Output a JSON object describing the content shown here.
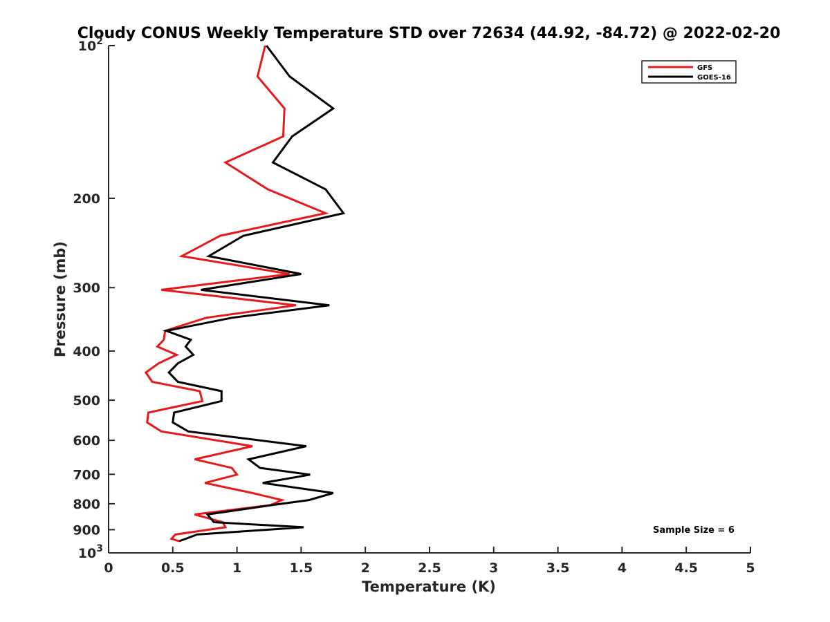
{
  "chart_data": {
    "type": "line",
    "title": "Cloudy CONUS Weekly Temperature STD over 72634 (44.92, -84.72) @ 2022-02-20",
    "xlabel": "Temperature (K)",
    "ylabel": "Pressure (mb)",
    "xlim": [
      0,
      5
    ],
    "ylim": [
      100,
      1000
    ],
    "y_scale": "log",
    "y_reversed": true,
    "x_ticks": [
      {
        "value": 0,
        "label": "0"
      },
      {
        "value": 0.5,
        "label": "0.5"
      },
      {
        "value": 1,
        "label": "1"
      },
      {
        "value": 1.5,
        "label": "1.5"
      },
      {
        "value": 2,
        "label": "2"
      },
      {
        "value": 2.5,
        "label": "2.5"
      },
      {
        "value": 3,
        "label": "3"
      },
      {
        "value": 3.5,
        "label": "3.5"
      },
      {
        "value": 4,
        "label": "4"
      },
      {
        "value": 4.5,
        "label": "4.5"
      },
      {
        "value": 5,
        "label": "5"
      }
    ],
    "y_ticks": [
      {
        "value": 100,
        "base": "10",
        "exp": "2"
      },
      {
        "value": 200,
        "label": "200"
      },
      {
        "value": 300,
        "label": "300"
      },
      {
        "value": 400,
        "label": "400"
      },
      {
        "value": 500,
        "label": "500"
      },
      {
        "value": 600,
        "label": "600"
      },
      {
        "value": 700,
        "label": "700"
      },
      {
        "value": 800,
        "label": "800"
      },
      {
        "value": 900,
        "label": "900"
      },
      {
        "value": 1000,
        "base": "10",
        "exp": "3"
      }
    ],
    "grid": false,
    "legend": {
      "position": "top-right"
    },
    "annotation": "Sample Size = 6",
    "series": [
      {
        "name": "GFS",
        "color": "#e41a1c",
        "points": [
          [
            1.22,
            100
          ],
          [
            1.16,
            115
          ],
          [
            1.37,
            133
          ],
          [
            1.36,
            151
          ],
          [
            0.91,
            170
          ],
          [
            1.24,
            192
          ],
          [
            1.69,
            214
          ],
          [
            0.87,
            237
          ],
          [
            0.57,
            260
          ],
          [
            1.41,
            282
          ],
          [
            0.41,
            303
          ],
          [
            1.46,
            325
          ],
          [
            0.76,
            344
          ],
          [
            0.44,
            365
          ],
          [
            0.43,
            380
          ],
          [
            0.38,
            392
          ],
          [
            0.53,
            407
          ],
          [
            0.39,
            423
          ],
          [
            0.29,
            441
          ],
          [
            0.34,
            460
          ],
          [
            0.71,
            480
          ],
          [
            0.73,
            502
          ],
          [
            0.31,
            529
          ],
          [
            0.3,
            553
          ],
          [
            0.41,
            576
          ],
          [
            1.12,
            616
          ],
          [
            0.67,
            654
          ],
          [
            0.96,
            680
          ],
          [
            1.0,
            701
          ],
          [
            0.75,
            728
          ],
          [
            1.12,
            762
          ],
          [
            1.35,
            787
          ],
          [
            1.26,
            805
          ],
          [
            0.67,
            840
          ],
          [
            0.89,
            870
          ],
          [
            0.91,
            890
          ],
          [
            0.52,
            920
          ],
          [
            0.49,
            938
          ],
          [
            0.55,
            948
          ]
        ]
      },
      {
        "name": "GOES-16",
        "color": "#000000",
        "points": [
          [
            1.23,
            100
          ],
          [
            1.41,
            115
          ],
          [
            1.75,
            133
          ],
          [
            1.43,
            151
          ],
          [
            1.28,
            170
          ],
          [
            1.69,
            192
          ],
          [
            1.83,
            214
          ],
          [
            1.05,
            237
          ],
          [
            0.78,
            260
          ],
          [
            1.5,
            282
          ],
          [
            0.72,
            303
          ],
          [
            1.72,
            325
          ],
          [
            0.96,
            344
          ],
          [
            0.45,
            365
          ],
          [
            0.64,
            380
          ],
          [
            0.6,
            392
          ],
          [
            0.66,
            407
          ],
          [
            0.54,
            423
          ],
          [
            0.47,
            441
          ],
          [
            0.54,
            460
          ],
          [
            0.88,
            480
          ],
          [
            0.88,
            502
          ],
          [
            0.51,
            529
          ],
          [
            0.5,
            553
          ],
          [
            0.62,
            576
          ],
          [
            1.54,
            616
          ],
          [
            1.09,
            654
          ],
          [
            1.18,
            680
          ],
          [
            1.57,
            701
          ],
          [
            1.2,
            728
          ],
          [
            1.75,
            762
          ],
          [
            1.56,
            787
          ],
          [
            1.27,
            805
          ],
          [
            0.77,
            840
          ],
          [
            0.82,
            870
          ],
          [
            1.52,
            890
          ],
          [
            0.69,
            920
          ],
          [
            0.6,
            938
          ],
          [
            0.55,
            948
          ]
        ]
      }
    ]
  }
}
